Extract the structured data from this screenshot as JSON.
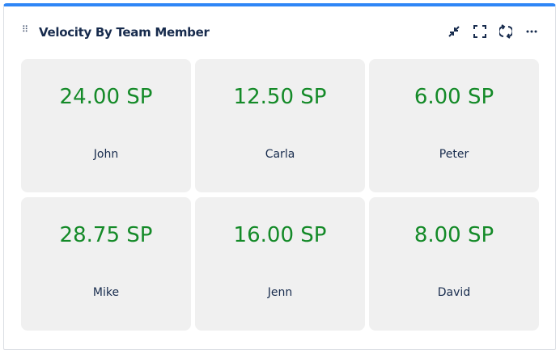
{
  "widget": {
    "title": "Velocity By Team Member"
  },
  "colors": {
    "accent": "#2f86f6",
    "value": "#148a28"
  },
  "icons": [
    "drag-handle-icon",
    "minimize-icon",
    "fullscreen-icon",
    "refresh-icon",
    "more-icon"
  ],
  "members": [
    {
      "name": "John",
      "value": "24.00 SP"
    },
    {
      "name": "Carla",
      "value": "12.50 SP"
    },
    {
      "name": "Peter",
      "value": "6.00 SP"
    },
    {
      "name": "Mike",
      "value": "28.75 SP"
    },
    {
      "name": "Jenn",
      "value": "16.00 SP"
    },
    {
      "name": "David",
      "value": "8.00 SP"
    }
  ]
}
